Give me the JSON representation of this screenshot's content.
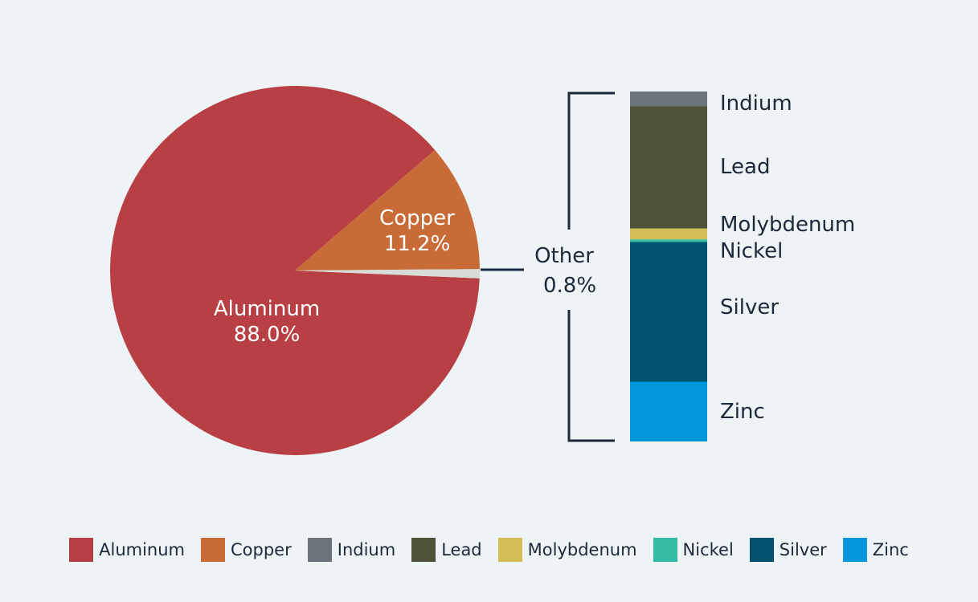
{
  "colors": {
    "Aluminum": "#b84044",
    "Copper": "#c96b36",
    "Indium": "#6b747b",
    "Lead": "#4d5239",
    "Molybdenum": "#d5bd55",
    "Nickel": "#35bba3",
    "Silver": "#00526d",
    "Zinc": "#0096da",
    "other_slice": "#d8dcd6",
    "bracket": "#1b2a3a"
  },
  "chart_data": [
    {
      "type": "pie",
      "slices": [
        {
          "label": "Aluminum",
          "value": 88.0,
          "value_label": "88.0%"
        },
        {
          "label": "Copper",
          "value": 11.2,
          "value_label": "11.2%"
        },
        {
          "label": "Other",
          "value": 0.8,
          "value_label": "0.8%"
        }
      ]
    },
    {
      "type": "bar",
      "stacked": true,
      "description_of": "Other",
      "segments": [
        {
          "label": "Indium",
          "value": 0.034
        },
        {
          "label": "Lead",
          "value": 0.28
        },
        {
          "label": "Molybdenum",
          "value": 0.025
        },
        {
          "label": "Nickel",
          "value": 0.006
        },
        {
          "label": "Silver",
          "value": 0.32
        },
        {
          "label": "Zinc",
          "value": 0.137
        }
      ]
    }
  ],
  "legend": [
    "Aluminum",
    "Copper",
    "Indium",
    "Lead",
    "Molybdenum",
    "Nickel",
    "Silver",
    "Zinc"
  ]
}
